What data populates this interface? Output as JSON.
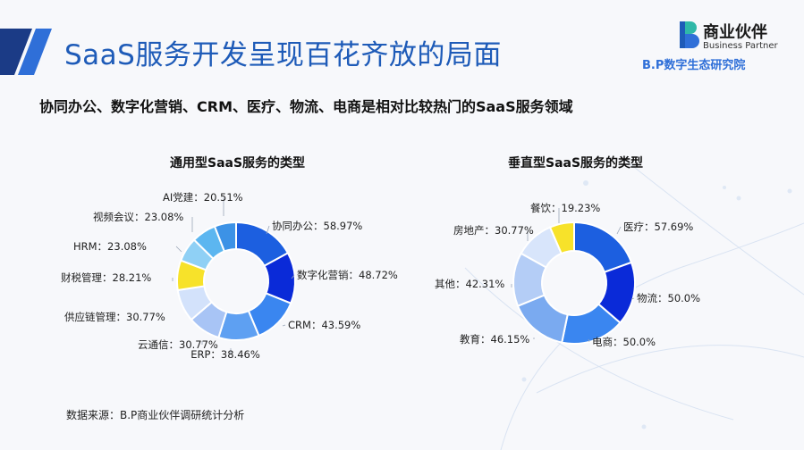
{
  "header": {
    "title": "SaaS服务开发呈现百花齐放的局面",
    "subtitle": "协同办公、数字化营销、CRM、医疗、物流、电商是相对比较热门的SaaS服务领域"
  },
  "brand": {
    "name_cn": "商业伙伴",
    "name_en": "Business Partner",
    "institute": "B.P数字生态研究院"
  },
  "source": "数据来源：B.P商业伙伴调研统计分析",
  "chart_data": [
    {
      "type": "pie",
      "title": "通用型SaaS服务的类型",
      "categories": [
        "协同办公",
        "数字化营销",
        "CRM",
        "ERP",
        "云通信",
        "供应链管理",
        "财税管理",
        "HRM",
        "视频会议",
        "AI党建"
      ],
      "values": [
        58.97,
        48.72,
        43.59,
        38.46,
        30.77,
        30.77,
        28.21,
        23.08,
        23.08,
        20.51
      ],
      "labels": [
        "协同办公：58.97%",
        "数字化营销：48.72%",
        "CRM：43.59%",
        "ERP：38.46%",
        "云通信：30.77%",
        "供应链管理：30.77%",
        "财税管理：28.21%",
        "HRM：23.08%",
        "视频会议：23.08%",
        "AI党建：20.51%"
      ],
      "colors": [
        "#1c5fe0",
        "#0a2ad8",
        "#3a86f0",
        "#5ea0f2",
        "#a8c4f5",
        "#d3e2fb",
        "#f7e22a",
        "#8fd0f5",
        "#5cb6f0",
        "#3c92e6"
      ]
    },
    {
      "type": "pie",
      "title": "垂直型SaaS服务的类型",
      "categories": [
        "医疗",
        "物流",
        "电商",
        "教育",
        "其他",
        "房地产",
        "餐饮"
      ],
      "values": [
        57.69,
        50.0,
        50.0,
        46.15,
        42.31,
        30.77,
        19.23
      ],
      "labels": [
        "医疗：57.69%",
        "物流：50.0%",
        "电商：50.0%",
        "教育：46.15%",
        "其他：42.31%",
        "房地产：30.77%",
        "餐饮：19.23%"
      ],
      "colors": [
        "#1c5fe0",
        "#0a2ad8",
        "#3a86f0",
        "#7aaaf0",
        "#b4cdf6",
        "#d8e5fb",
        "#f7e22a"
      ]
    }
  ]
}
